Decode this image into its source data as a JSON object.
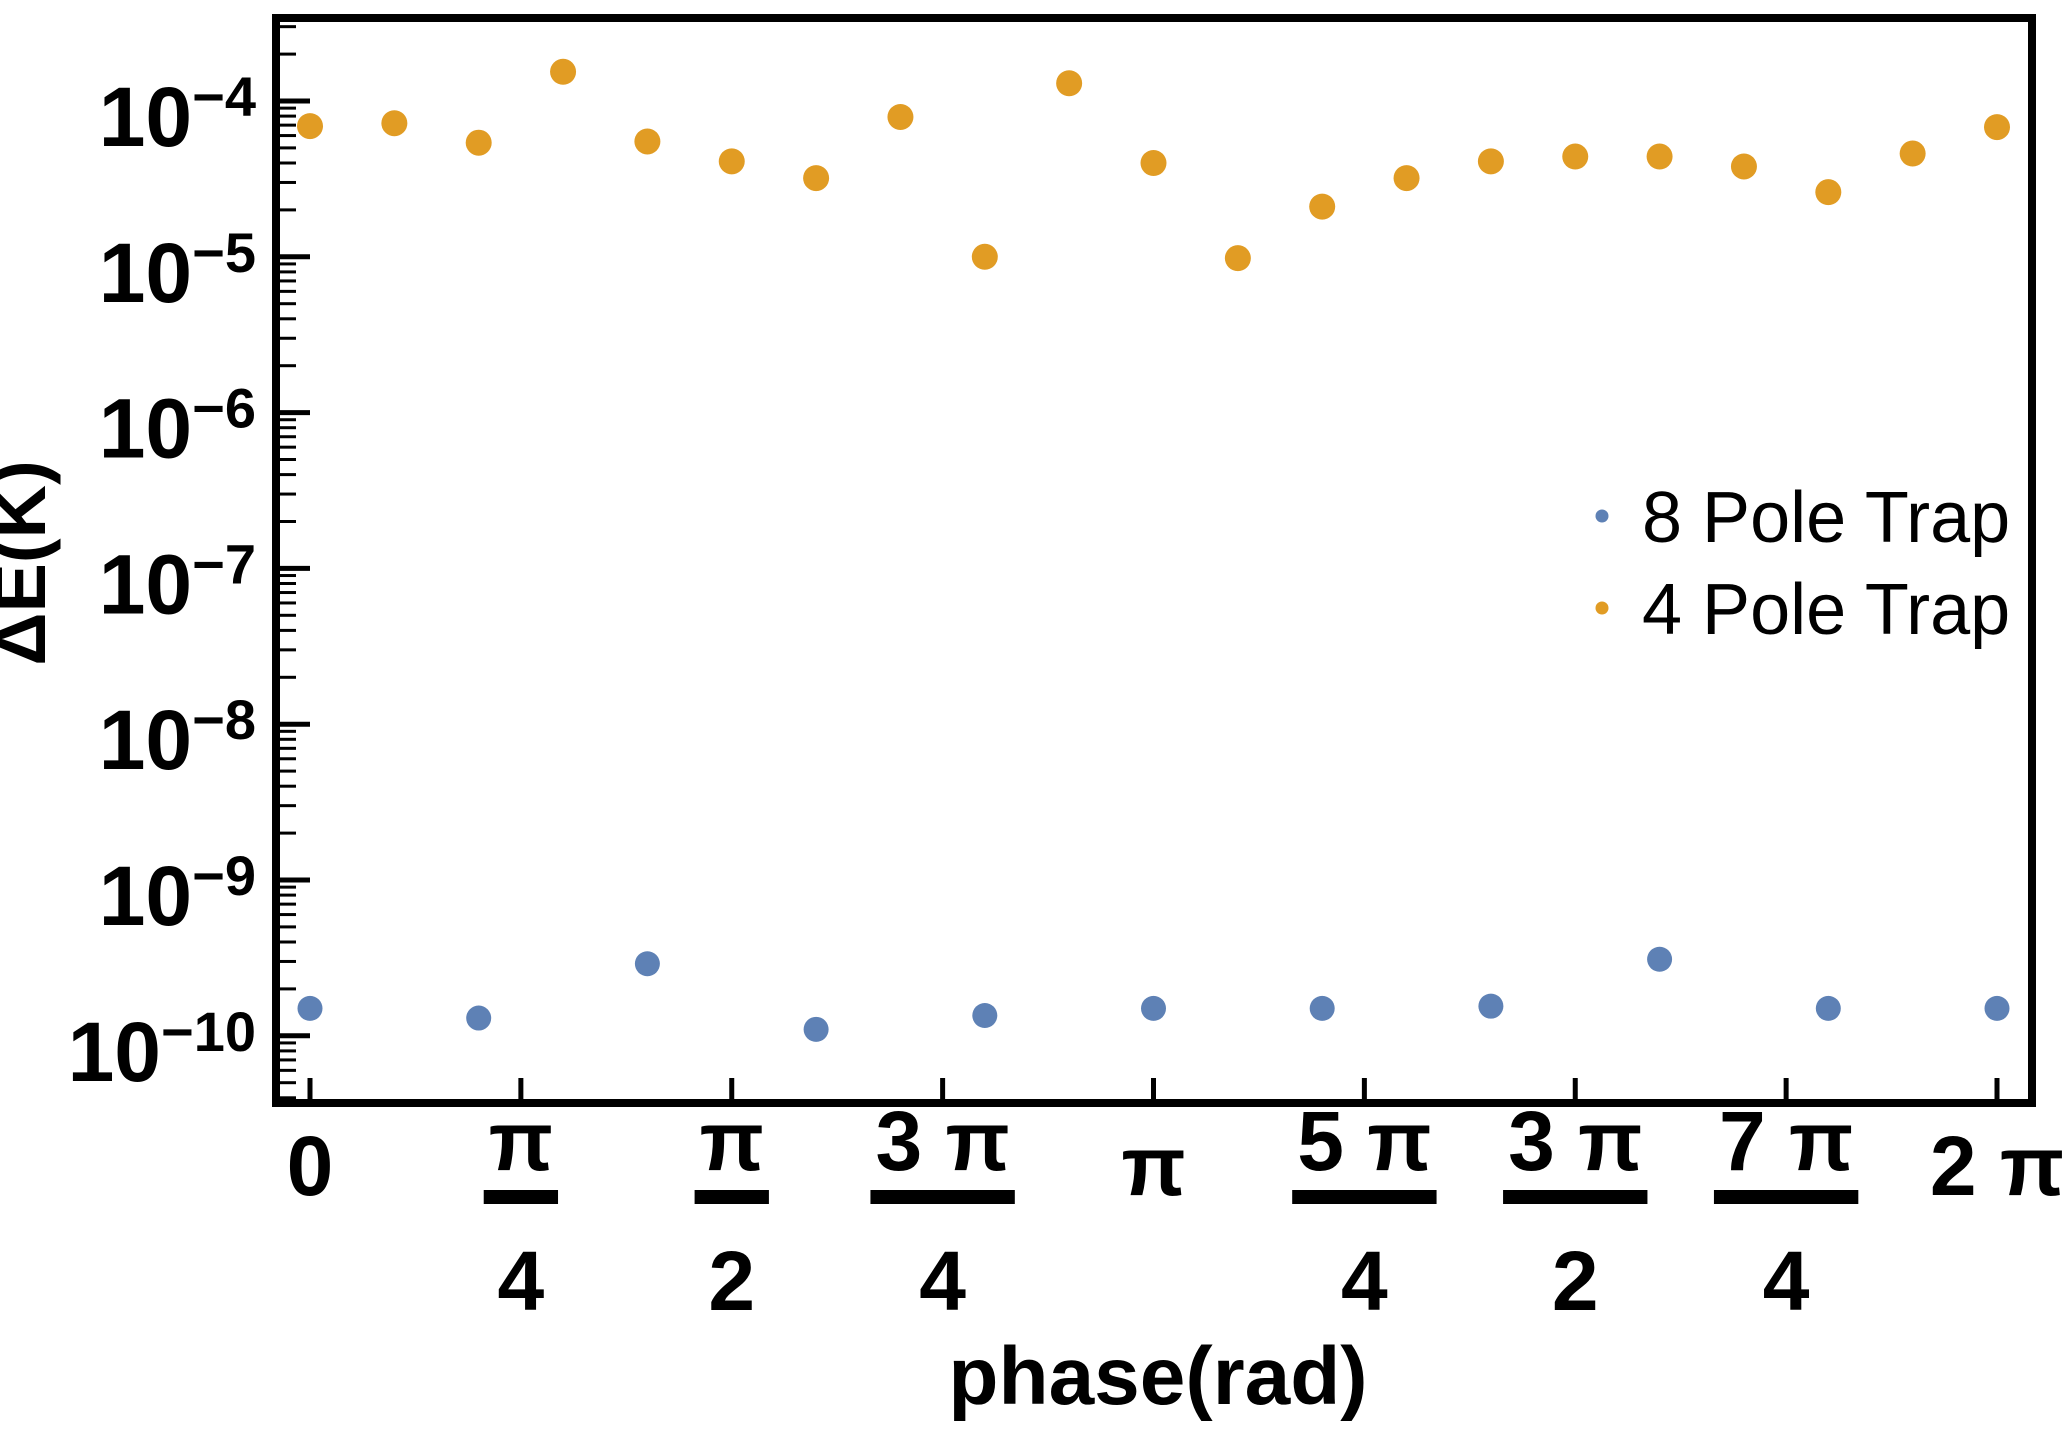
{
  "figure": {
    "background": "#ffffff",
    "frame_color": "#000000"
  },
  "chart_data": {
    "type": "scatter",
    "title": "",
    "xlabel": "phase(rad)",
    "ylabel": "ΔE(K)",
    "x_axis": {
      "unit": "rad",
      "xlim_rad": [
        -0.127,
        6.412
      ],
      "ticks": [
        {
          "value_rad": 0.0,
          "num": "0"
        },
        {
          "value_rad": 0.7854,
          "num": "π",
          "den": "4"
        },
        {
          "value_rad": 1.5708,
          "num": "π",
          "den": "2"
        },
        {
          "value_rad": 2.3562,
          "num": "3 π",
          "den": "4"
        },
        {
          "value_rad": 3.1416,
          "num": "π"
        },
        {
          "value_rad": 3.927,
          "num": "5 π",
          "den": "4"
        },
        {
          "value_rad": 4.7124,
          "num": "3 π",
          "den": "2"
        },
        {
          "value_rad": 5.4978,
          "num": "7 π",
          "den": "4"
        },
        {
          "value_rad": 6.2832,
          "num": "2 π"
        }
      ]
    },
    "y_axis": {
      "scale": "log",
      "ylim": [
        3.6e-11,
        0.00034
      ],
      "tick_exponents": [
        -4,
        -5,
        -6,
        -7,
        -8,
        -9,
        -10
      ],
      "tick_label_base": "10",
      "minor_ticks": "log-subdecade"
    },
    "grid": false,
    "legend": {
      "position": "middle-right",
      "frame": false
    },
    "series": [
      {
        "name": "8 Pole Trap",
        "color": "#5E81B5",
        "marker": "circle",
        "marker_radius_px": 12.5,
        "points": [
          {
            "phase_rad": 0.0,
            "value": 1.5e-10
          },
          {
            "phase_rad": 0.6283,
            "value": 1.3e-10
          },
          {
            "phase_rad": 1.2566,
            "value": 2.9e-10
          },
          {
            "phase_rad": 1.885,
            "value": 1.1e-10
          },
          {
            "phase_rad": 2.5133,
            "value": 1.35e-10
          },
          {
            "phase_rad": 3.1416,
            "value": 1.5e-10
          },
          {
            "phase_rad": 3.7699,
            "value": 1.5e-10
          },
          {
            "phase_rad": 4.3982,
            "value": 1.55e-10
          },
          {
            "phase_rad": 5.0265,
            "value": 3.1e-10
          },
          {
            "phase_rad": 5.6549,
            "value": 1.5e-10
          },
          {
            "phase_rad": 6.2832,
            "value": 1.5e-10
          }
        ]
      },
      {
        "name": "4 Pole Trap",
        "color": "#E19C24",
        "marker": "circle",
        "marker_radius_px": 13,
        "points": [
          {
            "phase_rad": 0.0,
            "value": 6.9e-05
          },
          {
            "phase_rad": 0.3142,
            "value": 7.2e-05
          },
          {
            "phase_rad": 0.6283,
            "value": 5.4e-05
          },
          {
            "phase_rad": 0.9425,
            "value": 0.000154
          },
          {
            "phase_rad": 1.2566,
            "value": 5.5e-05
          },
          {
            "phase_rad": 1.5708,
            "value": 4.1e-05
          },
          {
            "phase_rad": 1.885,
            "value": 3.2e-05
          },
          {
            "phase_rad": 2.1991,
            "value": 7.9e-05
          },
          {
            "phase_rad": 2.5133,
            "value": 1e-05
          },
          {
            "phase_rad": 2.8274,
            "value": 0.00013
          },
          {
            "phase_rad": 3.1416,
            "value": 4e-05
          },
          {
            "phase_rad": 3.4558,
            "value": 9.8e-06
          },
          {
            "phase_rad": 3.7699,
            "value": 2.1e-05
          },
          {
            "phase_rad": 4.0841,
            "value": 3.2e-05
          },
          {
            "phase_rad": 4.3982,
            "value": 4.1e-05
          },
          {
            "phase_rad": 4.7124,
            "value": 4.4e-05
          },
          {
            "phase_rad": 5.0265,
            "value": 4.4e-05
          },
          {
            "phase_rad": 5.3407,
            "value": 3.8e-05
          },
          {
            "phase_rad": 5.6549,
            "value": 2.6e-05
          },
          {
            "phase_rad": 5.969,
            "value": 4.6e-05
          },
          {
            "phase_rad": 6.2832,
            "value": 6.8e-05
          }
        ]
      }
    ]
  }
}
